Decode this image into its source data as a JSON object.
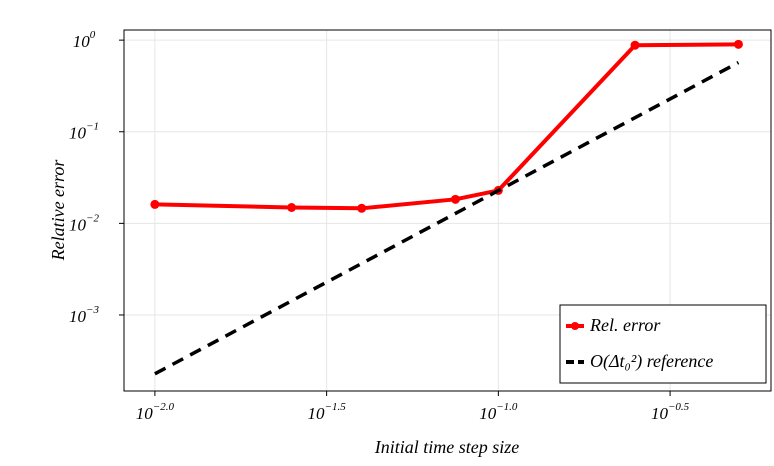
{
  "chart_data": {
    "type": "line",
    "xlabel": "Initial time step size",
    "ylabel": "Relative error",
    "x": [
      0.01,
      0.025,
      0.04,
      0.075,
      0.1,
      0.25,
      0.5
    ],
    "series": [
      {
        "name": "Rel. error",
        "color": "#ff0000",
        "style": "solid",
        "markers": true,
        "values": [
          0.0161,
          0.0149,
          0.0146,
          0.0183,
          0.0229,
          0.88,
          0.9
        ]
      },
      {
        "name": "O(Δt₀²) reference",
        "color": "#000000",
        "style": "dashed",
        "markers": false,
        "values": [
          0.000228,
          0.001425,
          0.003648,
          0.012825,
          0.0228,
          0.1425,
          0.57
        ]
      }
    ],
    "xscale": "log",
    "yscale": "log",
    "xlim": [
      0.00813,
      0.622
    ],
    "ylim": [
      0.000148,
      1.29
    ],
    "xticks": [
      {
        "value": 0.01,
        "label": "10^−2.0"
      },
      {
        "value": 0.0316227766,
        "label": "10^−1.5"
      },
      {
        "value": 0.1,
        "label": "10^−1.0"
      },
      {
        "value": 0.316227766,
        "label": "10^−0.5"
      }
    ],
    "yticks": [
      {
        "value": 0.001,
        "label": "10^−3"
      },
      {
        "value": 0.01,
        "label": "10^−2"
      },
      {
        "value": 0.1,
        "label": "10^−1"
      },
      {
        "value": 1,
        "label": "10^0"
      }
    ],
    "grid": true,
    "legend": "lower right"
  }
}
